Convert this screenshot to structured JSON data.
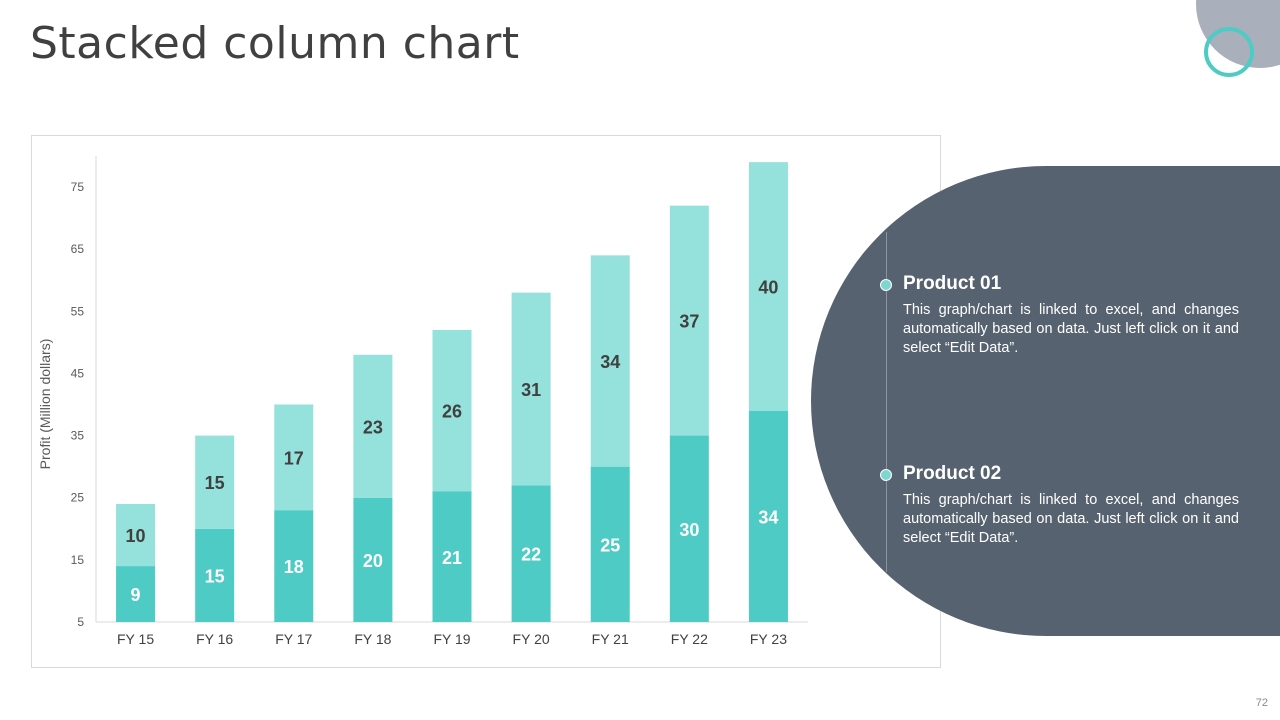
{
  "slide": {
    "title": "Stacked column chart",
    "page_number": "72"
  },
  "legend_panel": {
    "items": [
      {
        "title": "Product 01",
        "description": "This graph/chart is linked to excel, and changes automatically based on data. Just left click on it and select “Edit Data”."
      },
      {
        "title": "Product 02",
        "description": "This graph/chart is linked to excel, and changes automatically based on data. Just left click on it and select “Edit Data”."
      }
    ]
  },
  "colors": {
    "product_02": "#4ecbc4",
    "product_01": "#95e1dc",
    "panel": "#576270",
    "accent_ring": "#4ecbc4"
  },
  "chart_data": {
    "type": "bar",
    "stacked": true,
    "categories": [
      "FY 15",
      "FY 16",
      "FY 17",
      "FY 18",
      "FY 19",
      "FY 20",
      "FY 21",
      "FY 22",
      "FY 23"
    ],
    "series": [
      {
        "name": "Product 02",
        "values": [
          9,
          15,
          18,
          20,
          21,
          22,
          25,
          30,
          34
        ]
      },
      {
        "name": "Product 01",
        "values": [
          10,
          15,
          17,
          23,
          26,
          31,
          34,
          37,
          40
        ]
      }
    ],
    "ylabel": "Profit  (Million dollars)",
    "xlabel": "",
    "yticks": [
      5,
      15,
      25,
      35,
      45,
      55,
      65,
      75
    ],
    "ylim": [
      5,
      75
    ],
    "grid": false,
    "data_labels": true
  }
}
